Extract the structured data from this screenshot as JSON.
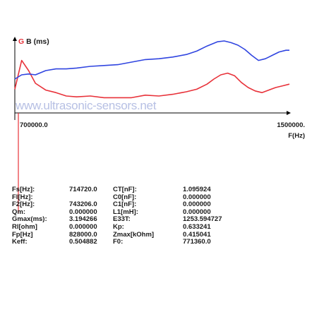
{
  "chart_data": {
    "type": "line",
    "y_axis_label": {
      "prefix": "G",
      "suffix": " B (ms)"
    },
    "x_axis_label": "F(Hz)",
    "x_range_labels": {
      "min": "700000.0",
      "max": "1500000."
    },
    "xlim": [
      700000,
      1500000
    ],
    "ylim": [
      0,
      1
    ],
    "watermark": "www.ultrasonic-sensors.net",
    "series": [
      {
        "key": "G",
        "color": "#e8323a",
        "x": [
          700000,
          720000,
          740000,
          760000,
          790000,
          820000,
          850000,
          880000,
          920000,
          960000,
          1000000,
          1040000,
          1080000,
          1120000,
          1160000,
          1200000,
          1230000,
          1260000,
          1280000,
          1300000,
          1320000,
          1340000,
          1360000,
          1380000,
          1400000,
          1420000,
          1440000,
          1460000,
          1480000,
          1500000
        ],
        "values": [
          0.28,
          0.62,
          0.5,
          0.35,
          0.27,
          0.24,
          0.2,
          0.19,
          0.2,
          0.18,
          0.18,
          0.18,
          0.21,
          0.2,
          0.22,
          0.25,
          0.28,
          0.34,
          0.4,
          0.45,
          0.47,
          0.44,
          0.36,
          0.3,
          0.26,
          0.24,
          0.27,
          0.3,
          0.32,
          0.34
        ]
      },
      {
        "key": "B",
        "color": "#3045e0",
        "x": [
          700000,
          720000,
          740000,
          760000,
          790000,
          820000,
          850000,
          880000,
          920000,
          960000,
          1000000,
          1040000,
          1080000,
          1120000,
          1160000,
          1200000,
          1230000,
          1260000,
          1290000,
          1310000,
          1330000,
          1350000,
          1370000,
          1390000,
          1410000,
          1430000,
          1450000,
          1470000,
          1490000,
          1500000
        ],
        "values": [
          0.4,
          0.45,
          0.46,
          0.45,
          0.5,
          0.52,
          0.52,
          0.53,
          0.55,
          0.56,
          0.57,
          0.6,
          0.63,
          0.64,
          0.66,
          0.69,
          0.73,
          0.79,
          0.84,
          0.85,
          0.83,
          0.8,
          0.75,
          0.68,
          0.62,
          0.64,
          0.68,
          0.72,
          0.74,
          0.74
        ]
      }
    ]
  },
  "params": {
    "col1_labels": [
      "Fs[Hz]:",
      "Fl[Hz]:",
      "F2[Hz]:",
      "Qm:",
      "Gmax(ms):",
      "Rl[ohm]",
      "Fp[Hz]",
      "Keff:"
    ],
    "col2_values": [
      "714720.0",
      "",
      "743206.0",
      "0.000000",
      "3.194266",
      "0.000000",
      "828000.0",
      "0.504882"
    ],
    "col3_labels": [
      "CT[nF]:",
      "C0[nF]:",
      "C1[nF]:",
      "L1[mH]:",
      "E33T:",
      "Kp:",
      "Zmax[kOhm]",
      "F0:"
    ],
    "col4_values": [
      "1.095924",
      "0.000000",
      "0.000000",
      "0.000000",
      "1253.594727",
      "0.633241",
      "0.415041",
      "771360.0"
    ]
  }
}
